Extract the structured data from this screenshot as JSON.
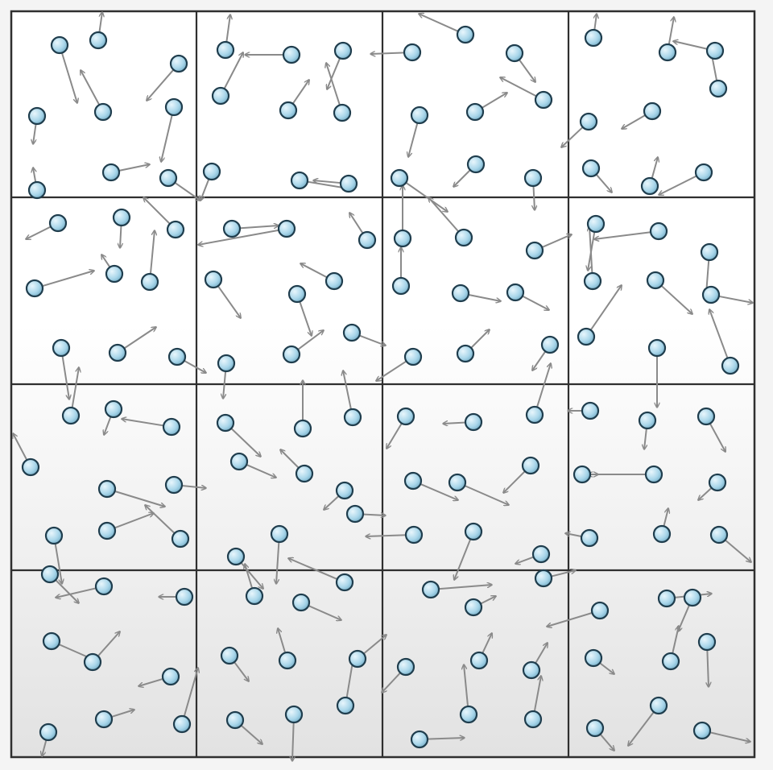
{
  "diagram": {
    "grid": {
      "rows": 4,
      "cols": 4
    },
    "colors": {
      "page_background": "#f4f4f4",
      "panel_top": "#ffffff",
      "panel_bottom": "#e2e2e2",
      "grid_line": "#2f2f2f",
      "arrow": "#8a8a8a",
      "particle_fill": "#a9d6ea",
      "particle_stroke": "#1f3d4d"
    }
  }
}
